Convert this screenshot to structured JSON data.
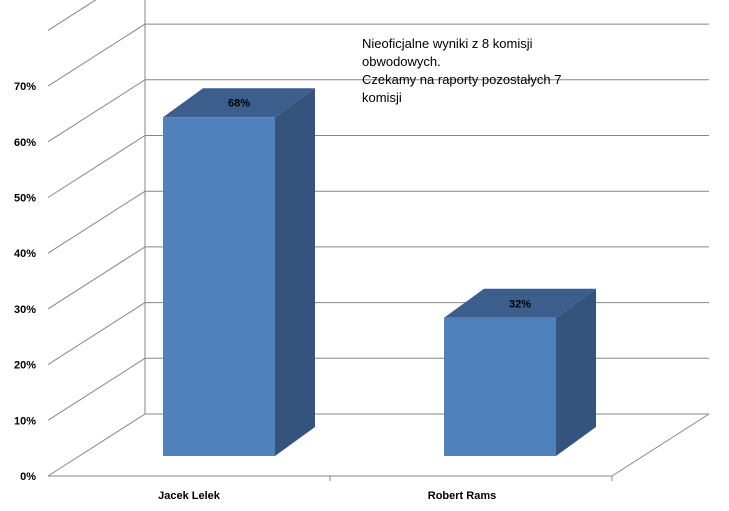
{
  "chart_data": {
    "type": "bar",
    "categories": [
      "Jacek Lelek",
      "Robert Rams"
    ],
    "values": [
      68,
      32
    ],
    "data_labels": [
      "68%",
      "32%"
    ],
    "y_ticks": [
      "0%",
      "10%",
      "20%",
      "30%",
      "40%",
      "50%",
      "60%",
      "70%"
    ],
    "ylim": [
      0,
      80
    ],
    "grid": true,
    "style": "3d-column",
    "colors": {
      "front": "#4f81bd",
      "side": "#34547e",
      "top": "#3b5e8c",
      "grid": "#868686"
    },
    "annotation": {
      "lines": [
        "Nieoficjalne wyniki z 8 komisji",
        "obwodowych.",
        "Czekamy na raporty pozostałych 7",
        "komisji"
      ]
    }
  }
}
